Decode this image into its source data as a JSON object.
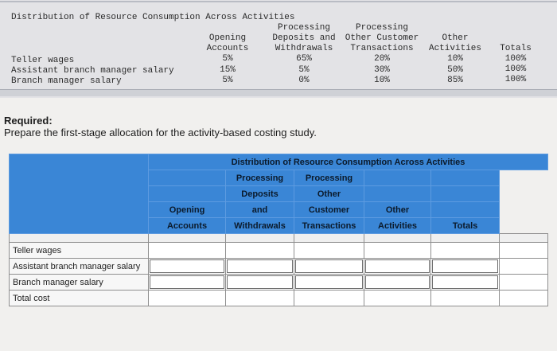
{
  "top_table": {
    "title": "Distribution of Resource Consumption Across Activities",
    "headers": {
      "opening": [
        "Opening",
        "Accounts"
      ],
      "deposits": [
        "Processing",
        "Deposits and",
        "Withdrawals"
      ],
      "other_customer": [
        "Processing",
        "Other Customer",
        "Transactions"
      ],
      "other_activities": [
        "Other",
        "Activities"
      ],
      "totals": [
        "Totals"
      ]
    },
    "rows": [
      {
        "label": "Teller wages",
        "values": [
          "5%",
          "65%",
          "20%",
          "10%",
          "100%"
        ]
      },
      {
        "label": "Assistant branch manager salary",
        "values": [
          "15%",
          "5%",
          "30%",
          "50%",
          "100%"
        ]
      },
      {
        "label": "Branch manager salary",
        "values": [
          "5%",
          "0%",
          "10%",
          "85%",
          "100%"
        ]
      }
    ]
  },
  "required": {
    "title": "Required:",
    "text": "Prepare the first-stage allocation for the activity-based costing study."
  },
  "answer_table": {
    "caption": "Distribution of Resource Consumption Across Activities",
    "headers": {
      "opening": [
        "Opening",
        "Accounts"
      ],
      "deposits": [
        "Processing",
        "Deposits",
        "and",
        "Withdrawals"
      ],
      "other_customer": [
        "Processing",
        "Other",
        "Customer",
        "Transactions"
      ],
      "other_activities": [
        "Other",
        "Activities"
      ],
      "totals": [
        "Totals"
      ]
    },
    "rows": [
      {
        "label": "Teller wages"
      },
      {
        "label": "Assistant branch manager salary"
      },
      {
        "label": "Branch manager salary"
      },
      {
        "label": "Total cost"
      }
    ]
  },
  "colors": {
    "header_blue": "#3a86d6",
    "top_bg": "#e3e3e6"
  }
}
